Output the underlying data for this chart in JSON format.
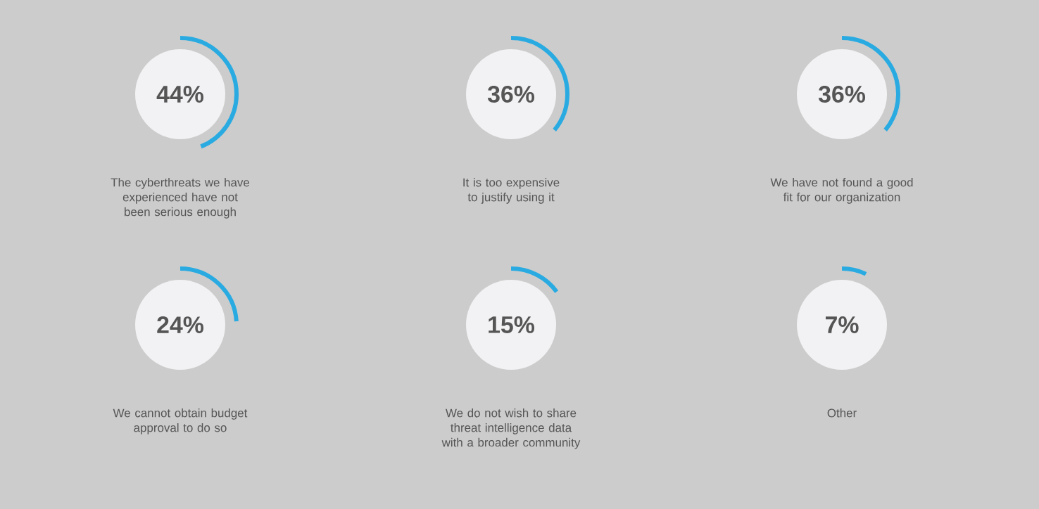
{
  "chart_data": {
    "type": "other",
    "categories": [
      "The cyberthreats we have experienced have not been serious enough",
      "It is too expensive to justify using it",
      "We have not found a good fit for our organization",
      "We cannot obtain budget approval to do so",
      "We do not wish to share threat intelligence data with a broader community",
      "Other"
    ],
    "values": [
      44,
      36,
      36,
      24,
      15,
      7
    ],
    "value_labels": [
      "44%",
      "36%",
      "36%",
      "24%",
      "15%",
      "7%"
    ]
  }
}
